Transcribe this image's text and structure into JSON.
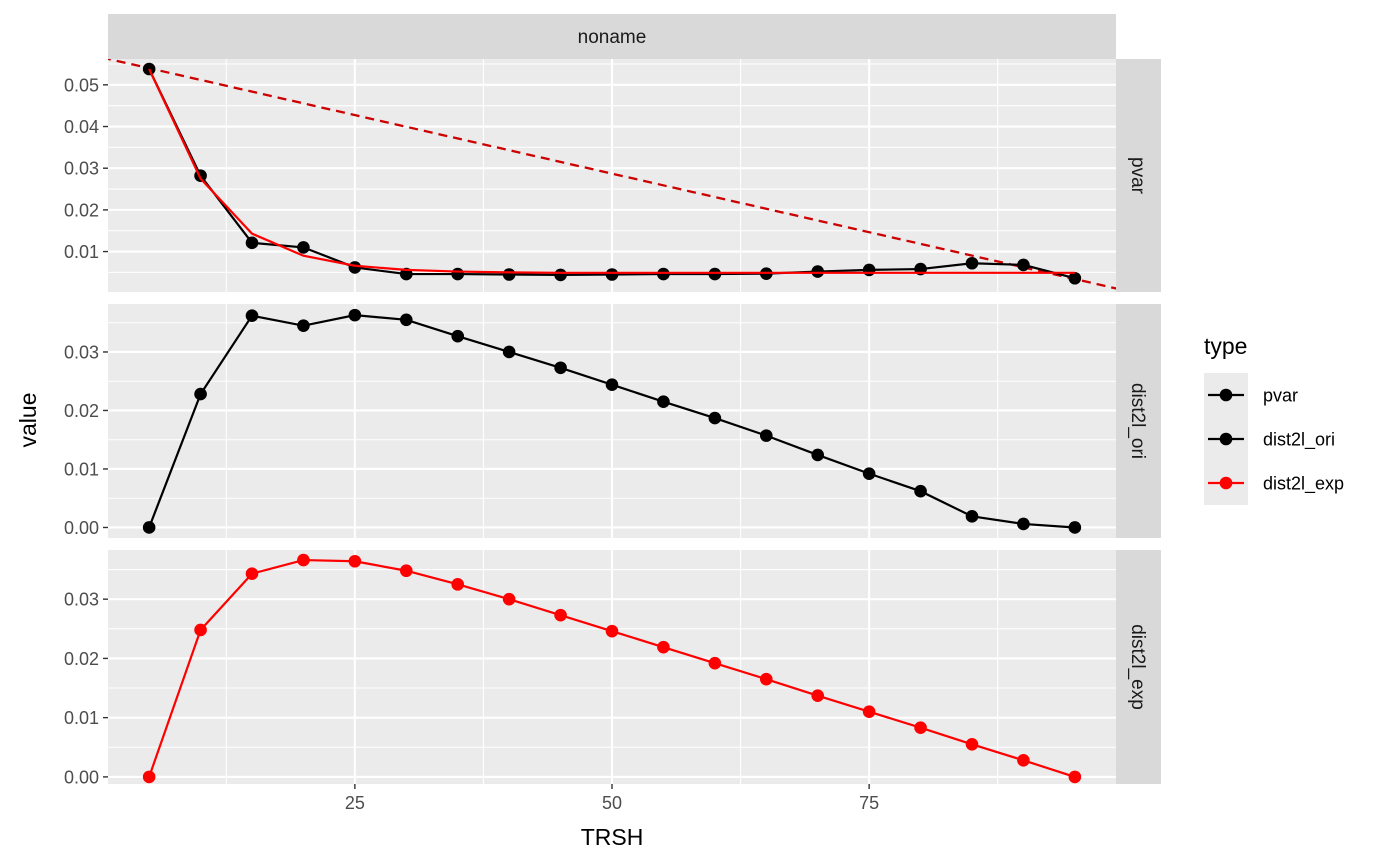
{
  "chart_data": {
    "type": "line",
    "facet_column": "noname",
    "xlabel": "TRSH",
    "ylabel": "value",
    "xlim": [
      1,
      99
    ],
    "x_ticks": [
      25,
      50,
      75
    ],
    "x_tick_labels": [
      "25",
      "50",
      "75"
    ],
    "x": [
      5,
      10,
      15,
      20,
      25,
      30,
      35,
      40,
      45,
      50,
      55,
      60,
      65,
      70,
      75,
      80,
      85,
      90,
      95
    ],
    "legend": {
      "title": "type",
      "placement": "right",
      "entries": [
        {
          "label": "pvar",
          "color": "#000000"
        },
        {
          "label": "dist2l_ori",
          "color": "#000000"
        },
        {
          "label": "dist2l_exp",
          "color": "#ff0000"
        }
      ]
    },
    "panels": [
      {
        "strip": "pvar",
        "ylim": [
          0.0003,
          0.0562
        ],
        "y_ticks": [
          0.01,
          0.02,
          0.03,
          0.04,
          0.05
        ],
        "y_tick_labels": [
          "0.01",
          "0.02",
          "0.03",
          "0.04",
          "0.05"
        ],
        "series": [
          {
            "color": "#000000",
            "points": true,
            "values": [
              0.0538,
              0.0282,
              0.0121,
              0.011,
              0.0062,
              0.0046,
              0.0046,
              0.0045,
              0.0044,
              0.0045,
              0.0046,
              0.0046,
              0.0047,
              0.0052,
              0.0056,
              0.0058,
              0.0072,
              0.0068,
              0.0036
            ]
          },
          {
            "color": "#ff0000",
            "points": false,
            "values": [
              0.0538,
              0.0275,
              0.0143,
              0.009,
              0.0066,
              0.0056,
              0.0052,
              0.005,
              0.0049,
              0.0049,
              0.0049,
              0.0049,
              0.0049,
              0.0049,
              0.0049,
              0.0049,
              0.0049,
              0.0049,
              0.0049
            ]
          }
        ],
        "reference_line": {
          "color": "#cc0000",
          "dash": true,
          "intercept": 0.0568,
          "slope": -0.000562
        }
      },
      {
        "strip": "dist2l_ori",
        "ylim": [
          -0.0018,
          0.0382
        ],
        "y_ticks": [
          0.0,
          0.01,
          0.02,
          0.03
        ],
        "y_tick_labels": [
          "0.00",
          "0.01",
          "0.02",
          "0.03"
        ],
        "series": [
          {
            "color": "#000000",
            "points": true,
            "values": [
              0.0,
              0.0228,
              0.0362,
              0.0345,
              0.0363,
              0.0355,
              0.0327,
              0.03,
              0.0273,
              0.0244,
              0.0215,
              0.0187,
              0.0157,
              0.0124,
              0.0092,
              0.0062,
              0.0019,
              0.0006,
              0.0
            ]
          }
        ]
      },
      {
        "strip": "dist2l_exp",
        "ylim": [
          -0.0012,
          0.0383
        ],
        "y_ticks": [
          0.0,
          0.01,
          0.02,
          0.03
        ],
        "y_tick_labels": [
          "0.00",
          "0.01",
          "0.02",
          "0.03"
        ],
        "series": [
          {
            "color": "#ff0000",
            "points": true,
            "values": [
              0.0,
              0.0248,
              0.0343,
              0.0366,
              0.0364,
              0.0348,
              0.0325,
              0.03,
              0.0273,
              0.0246,
              0.0219,
              0.0192,
              0.0165,
              0.0137,
              0.011,
              0.0083,
              0.0055,
              0.0028,
              0.0
            ]
          }
        ]
      }
    ]
  }
}
